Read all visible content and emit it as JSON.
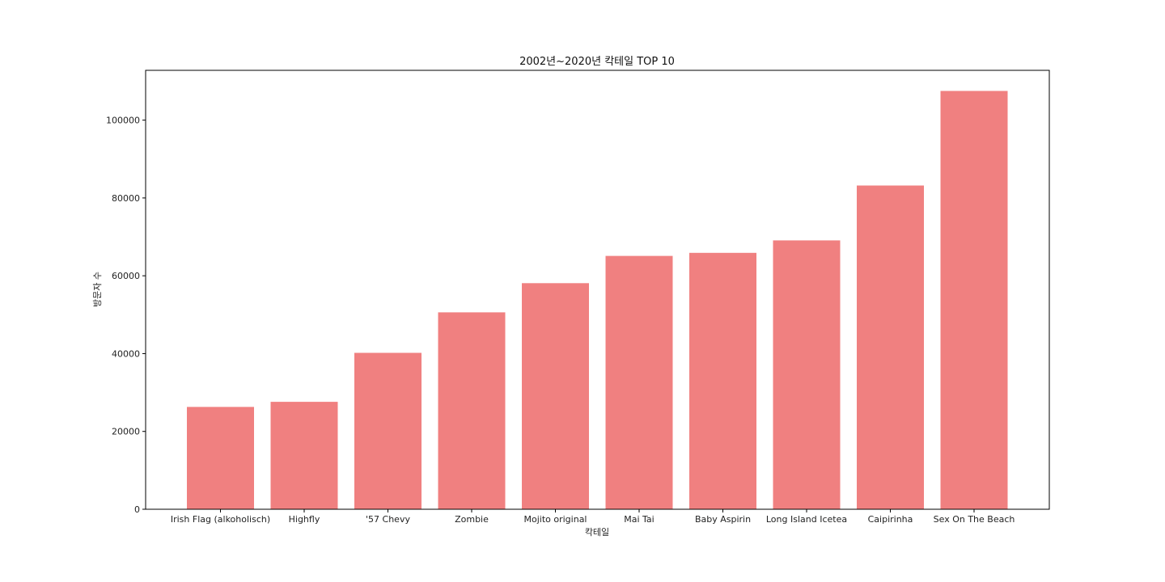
{
  "chart_data": {
    "type": "bar",
    "title": "2002년~2020년 칵테일 TOP 10",
    "xlabel": "칵테일",
    "ylabel": "방문자 수",
    "categories": [
      "Irish Flag (alkoholisch)",
      "Highfly",
      "'57 Chevy",
      "Zombie",
      "Mojito original",
      "Mai Tai",
      "Baby Aspirin",
      "Long Island Icetea",
      "Caipirinha",
      "Sex On The Beach"
    ],
    "values": [
      26300,
      27600,
      40200,
      50600,
      58100,
      65100,
      65900,
      69100,
      83200,
      107500
    ],
    "yticks": [
      0,
      20000,
      40000,
      60000,
      80000,
      100000
    ],
    "ylim": [
      0,
      112800
    ],
    "bar_color": "#f08080",
    "grid": false,
    "legend": "none"
  }
}
